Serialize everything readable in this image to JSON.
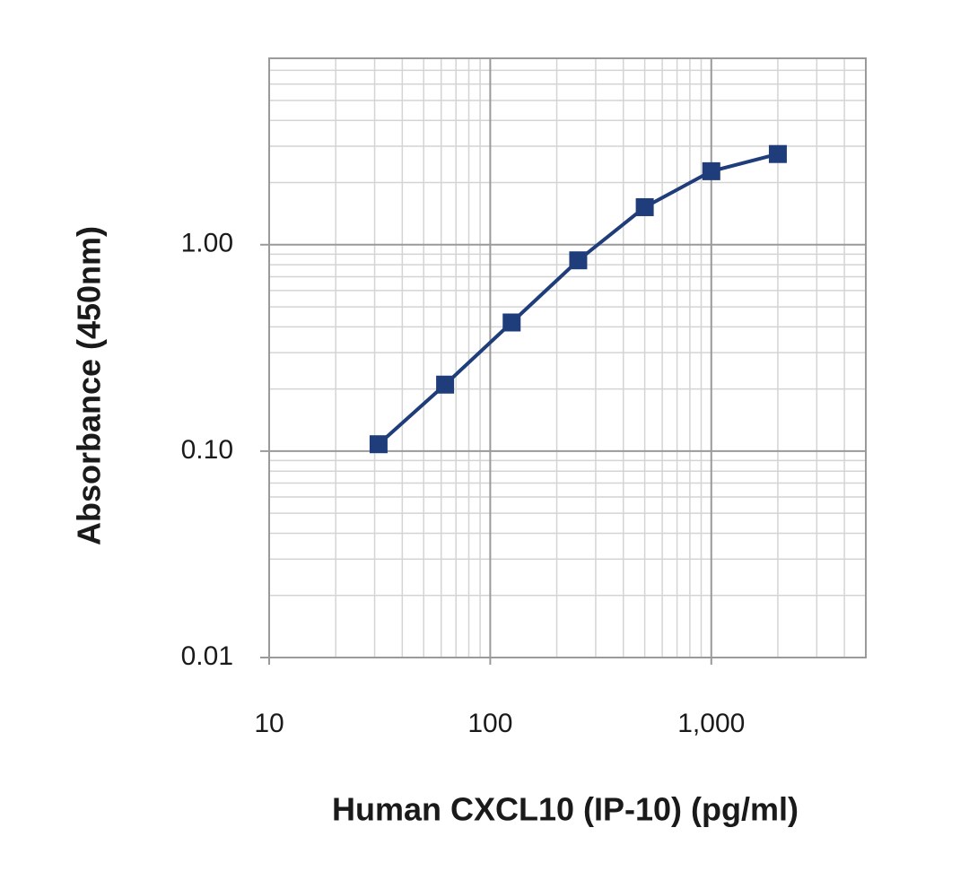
{
  "chart_data": {
    "type": "line",
    "x_label": "Human CXCL10 (IP-10) (pg/ml)",
    "y_label": "Absorbance (450nm)",
    "x": [
      31.25,
      62.5,
      125,
      250,
      500,
      1000,
      2000
    ],
    "series": [
      {
        "name": "Absorbance",
        "color": "#1f3d7a",
        "values": [
          0.108,
          0.21,
          0.42,
          0.84,
          1.52,
          2.27,
          2.75
        ]
      }
    ],
    "xlim": [
      10,
      5000
    ],
    "ylim": [
      0.01,
      8
    ],
    "xticks": [
      10,
      100,
      {
        "value": 1000,
        "label": "1,000"
      }
    ],
    "yticks": [
      {
        "value": 0.01,
        "label": "0.01"
      },
      {
        "value": 0.1,
        "label": "0.10"
      },
      {
        "value": 1,
        "label": "1.00"
      }
    ],
    "xscale": "log",
    "yscale": "log",
    "grid": true,
    "minor_grid": true,
    "marker": "square"
  }
}
